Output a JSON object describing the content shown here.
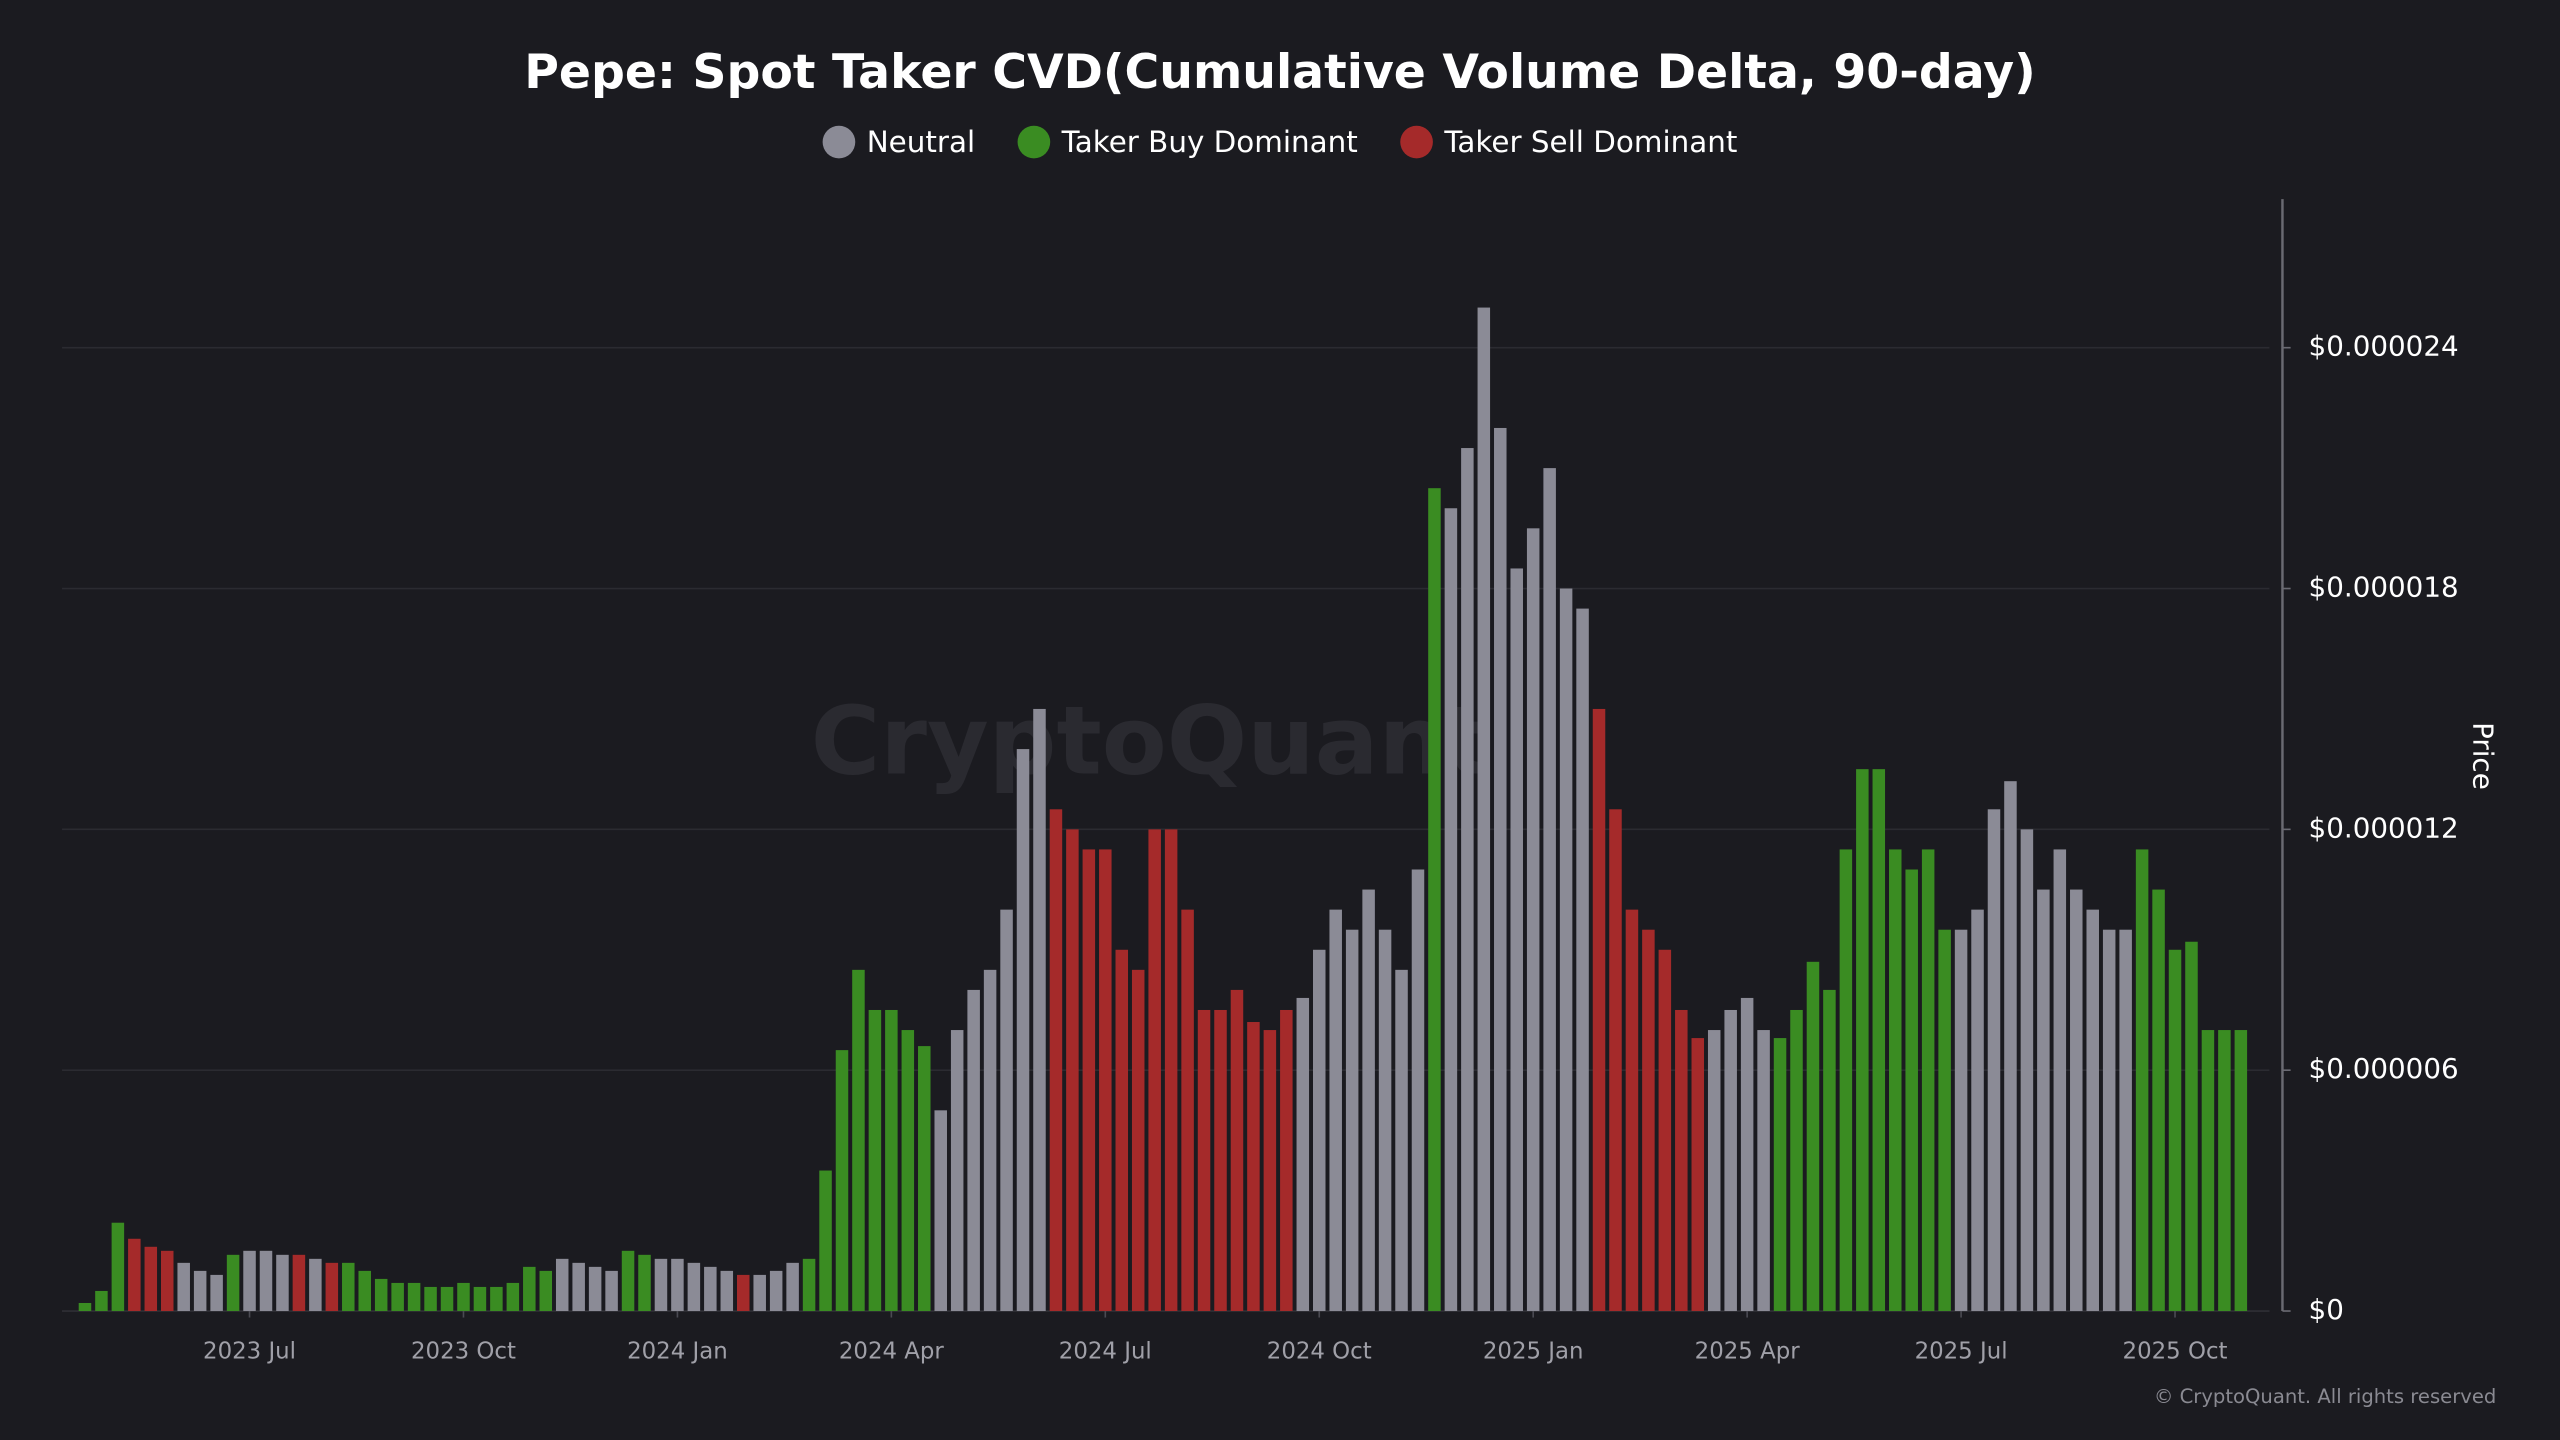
{
  "chart_data": {
    "type": "bar",
    "title": "Pepe: Spot Taker CVD(Cumulative Volume Delta, 90-day)",
    "y_axis_label": "Price",
    "watermark": "CryptoQuant",
    "footer": "© CryptoQuant. All rights reserved",
    "categories": [
      null,
      null,
      null,
      null,
      null,
      null,
      null,
      null,
      null,
      null,
      "2023 Jul",
      null,
      null,
      null,
      null,
      null,
      null,
      null,
      null,
      null,
      null,
      null,
      null,
      "2023 Oct",
      null,
      null,
      null,
      null,
      null,
      null,
      null,
      null,
      null,
      null,
      null,
      null,
      "2024 Jan",
      null,
      null,
      null,
      null,
      null,
      null,
      null,
      null,
      null,
      null,
      null,
      null,
      "2024 Apr",
      null,
      null,
      null,
      null,
      null,
      null,
      null,
      null,
      null,
      null,
      null,
      null,
      "2024 Jul",
      null,
      null,
      null,
      null,
      null,
      null,
      null,
      null,
      null,
      null,
      null,
      null,
      "2024 Oct",
      null,
      null,
      null,
      null,
      null,
      null,
      null,
      null,
      null,
      null,
      null,
      null,
      "2025 Jan",
      null,
      null,
      null,
      null,
      null,
      null,
      null,
      null,
      null,
      null,
      null,
      null,
      "2025 Apr",
      null,
      null,
      null,
      null,
      null,
      null,
      null,
      null,
      null,
      null,
      null,
      null,
      "2025 Jul",
      null,
      null,
      null,
      null,
      null,
      null,
      null,
      null,
      null,
      null,
      null,
      null,
      "2025 Oct",
      null,
      null,
      null,
      null
    ],
    "series": [
      {
        "name": "Neutral",
        "color": "#8b8b96",
        "values": [
          null,
          null,
          null,
          null,
          null,
          null,
          1.2e-06,
          1e-06,
          9e-07,
          null,
          1.5e-06,
          1.5e-06,
          1.4e-06,
          null,
          1.3e-06,
          null,
          null,
          null,
          null,
          null,
          null,
          null,
          null,
          null,
          null,
          null,
          null,
          null,
          null,
          1.3e-06,
          1.2e-06,
          1.1e-06,
          1e-06,
          null,
          null,
          1.3e-06,
          1.3e-06,
          1.2e-06,
          1.1e-06,
          1e-06,
          null,
          9e-07,
          1e-06,
          1.2e-06,
          null,
          null,
          null,
          null,
          null,
          null,
          null,
          null,
          5e-06,
          7e-06,
          8e-06,
          8.5e-06,
          1e-05,
          1.4e-05,
          1.5e-05,
          null,
          null,
          null,
          null,
          null,
          null,
          null,
          null,
          null,
          null,
          null,
          null,
          null,
          null,
          null,
          7.8e-06,
          9e-06,
          1e-05,
          9.5e-06,
          1.05e-05,
          9.5e-06,
          8.5e-06,
          1.1e-05,
          null,
          2e-05,
          2.15e-05,
          2.5e-05,
          2.2e-05,
          1.85e-05,
          1.95e-05,
          2.1e-05,
          1.8e-05,
          1.75e-05,
          null,
          null,
          null,
          null,
          null,
          null,
          null,
          7e-06,
          7.5e-06,
          7.8e-06,
          7e-06,
          null,
          null,
          null,
          null,
          null,
          null,
          null,
          null,
          null,
          null,
          null,
          9.5e-06,
          1e-05,
          1.25e-05,
          1.32e-05,
          1.2e-05,
          1.05e-05,
          1.15e-05,
          1.05e-05,
          1e-05,
          9.5e-06,
          9.5e-06,
          null,
          null,
          null,
          null,
          null,
          null,
          null
        ]
      },
      {
        "name": "Taker Buy Dominant",
        "color": "#3a8c22",
        "values": [
          2e-07,
          5e-07,
          2.2e-06,
          null,
          null,
          null,
          null,
          null,
          null,
          1.4e-06,
          null,
          null,
          null,
          null,
          null,
          null,
          1.2e-06,
          1e-06,
          8e-07,
          7e-07,
          7e-07,
          6e-07,
          6e-07,
          7e-07,
          6e-07,
          6e-07,
          7e-07,
          1.1e-06,
          1e-06,
          null,
          null,
          null,
          null,
          1.5e-06,
          1.4e-06,
          null,
          null,
          null,
          null,
          null,
          null,
          null,
          null,
          null,
          1.3e-06,
          3.5e-06,
          6.5e-06,
          8.5e-06,
          7.5e-06,
          7.5e-06,
          7e-06,
          6.6e-06,
          null,
          null,
          null,
          null,
          null,
          null,
          null,
          null,
          null,
          null,
          null,
          null,
          null,
          null,
          null,
          null,
          null,
          null,
          null,
          null,
          null,
          null,
          null,
          null,
          null,
          null,
          null,
          null,
          null,
          null,
          2.05e-05,
          null,
          null,
          null,
          null,
          null,
          null,
          null,
          null,
          null,
          null,
          null,
          null,
          null,
          null,
          null,
          null,
          null,
          null,
          null,
          null,
          6.8e-06,
          7.5e-06,
          8.7e-06,
          8e-06,
          1.15e-05,
          1.35e-05,
          1.35e-05,
          1.15e-05,
          1.1e-05,
          1.15e-05,
          9.5e-06,
          null,
          null,
          null,
          null,
          null,
          null,
          null,
          null,
          null,
          null,
          null,
          1.15e-05,
          1.05e-05,
          9e-06,
          9.2e-06,
          7e-06,
          7e-06,
          7e-06
        ]
      },
      {
        "name": "Taker Sell Dominant",
        "color": "#a52a2a",
        "values": [
          null,
          null,
          null,
          1.8e-06,
          1.6e-06,
          1.5e-06,
          null,
          null,
          null,
          null,
          null,
          null,
          null,
          1.4e-06,
          null,
          1.2e-06,
          null,
          null,
          null,
          null,
          null,
          null,
          null,
          null,
          null,
          null,
          null,
          null,
          null,
          null,
          null,
          null,
          null,
          null,
          null,
          null,
          null,
          null,
          null,
          null,
          9e-07,
          null,
          null,
          null,
          null,
          null,
          null,
          null,
          null,
          null,
          null,
          null,
          null,
          null,
          null,
          null,
          null,
          null,
          null,
          1.25e-05,
          1.2e-05,
          1.15e-05,
          1.15e-05,
          9e-06,
          8.5e-06,
          1.2e-05,
          1.2e-05,
          1e-05,
          7.5e-06,
          7.5e-06,
          8e-06,
          7.2e-06,
          7e-06,
          7.5e-06,
          null,
          null,
          null,
          null,
          null,
          null,
          null,
          null,
          null,
          null,
          null,
          null,
          null,
          null,
          null,
          null,
          null,
          null,
          1.5e-05,
          1.25e-05,
          1e-05,
          9.5e-06,
          9e-06,
          7.5e-06,
          6.8e-06,
          null,
          null,
          null,
          null,
          null,
          null,
          null,
          null,
          null,
          null,
          null,
          null,
          null,
          null,
          null,
          null,
          null,
          null,
          null,
          null,
          null,
          null,
          null,
          null,
          null,
          null,
          null,
          null,
          null,
          null,
          null,
          null,
          null
        ]
      }
    ],
    "ylim": [
      0,
      2.77e-05
    ],
    "yticks": [
      {
        "value": 0,
        "label": "$0"
      },
      {
        "value": 6e-06,
        "label": "$0.000006"
      },
      {
        "value": 1.2e-05,
        "label": "$0.000012"
      },
      {
        "value": 1.8e-05,
        "label": "$0.000018"
      },
      {
        "value": 2.4e-05,
        "label": "$0.000024"
      }
    ],
    "y_axis_side": "right",
    "grid": true,
    "legend_position": "top"
  }
}
